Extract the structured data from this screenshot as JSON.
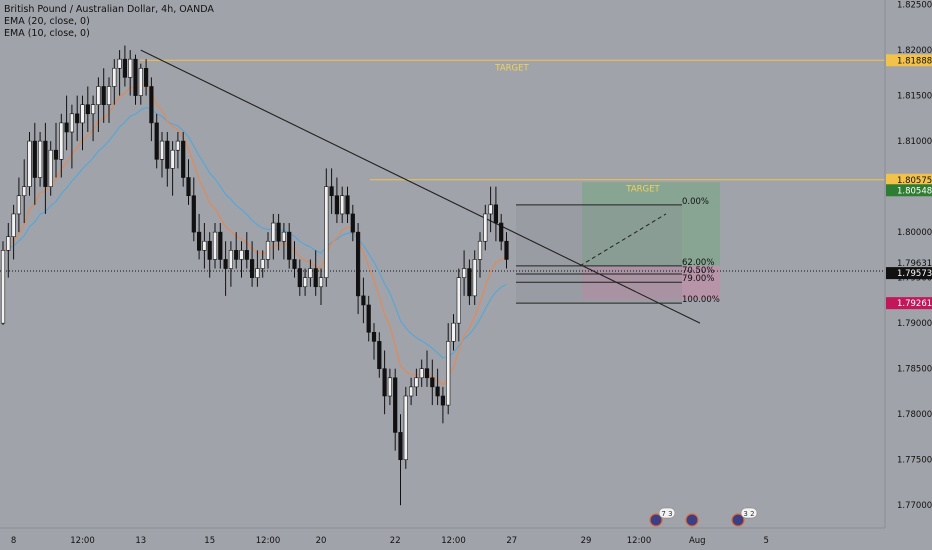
{
  "legend": {
    "title": "British Pound / Australian Dollar, 4h, OANDA",
    "ema1": "EMA (20, close, 0)",
    "ema2": "EMA (10, close, 0)"
  },
  "chart_data": {
    "type": "candlestick",
    "symbol": "GBPAUD",
    "interval": "4h",
    "source": "OANDA",
    "ylim": [
      1.7675,
      1.8255
    ],
    "y_ticks": [
      "1.82500",
      "1.82000",
      "1.81500",
      "1.81000",
      "1.80500",
      "1.80000",
      "1.79500",
      "1.79000",
      "1.78500",
      "1.78000",
      "1.77500",
      "1.77000"
    ],
    "x_ticks": [
      {
        "label": "8",
        "bar": 2
      },
      {
        "label": "12:00",
        "bar": 15
      },
      {
        "label": "13",
        "bar": 26
      },
      {
        "label": "15",
        "bar": 39
      },
      {
        "label": "12:00",
        "bar": 50
      },
      {
        "label": "20",
        "bar": 60
      },
      {
        "label": "22",
        "bar": 74
      },
      {
        "label": "12:00",
        "bar": 85
      },
      {
        "label": "27",
        "bar": 96
      },
      {
        "label": "29",
        "bar": 110
      },
      {
        "label": "12:00",
        "bar": 120
      },
      {
        "label": "Aug",
        "bar": 131
      },
      {
        "label": "5",
        "bar": 144
      }
    ],
    "candles": [
      [
        1.79,
        1.799,
        1.7898,
        1.798
      ],
      [
        1.798,
        1.801,
        1.795,
        1.7995
      ],
      [
        1.7995,
        1.803,
        1.797,
        1.802
      ],
      [
        1.802,
        1.806,
        1.8,
        1.804
      ],
      [
        1.804,
        1.808,
        1.801,
        1.805
      ],
      [
        1.805,
        1.811,
        1.804,
        1.81
      ],
      [
        1.81,
        1.812,
        1.803,
        1.806
      ],
      [
        1.806,
        1.811,
        1.805,
        1.81
      ],
      [
        1.81,
        1.812,
        1.802,
        1.805
      ],
      [
        1.805,
        1.81,
        1.804,
        1.809
      ],
      [
        1.809,
        1.812,
        1.806,
        1.808
      ],
      [
        1.808,
        1.813,
        1.806,
        1.812
      ],
      [
        1.812,
        1.815,
        1.809,
        1.811
      ],
      [
        1.811,
        1.814,
        1.807,
        1.813
      ],
      [
        1.813,
        1.815,
        1.81,
        1.812
      ],
      [
        1.812,
        1.815,
        1.809,
        1.814
      ],
      [
        1.814,
        1.816,
        1.811,
        1.813
      ],
      [
        1.813,
        1.815,
        1.81,
        1.814
      ],
      [
        1.814,
        1.817,
        1.811,
        1.816
      ],
      [
        1.816,
        1.818,
        1.812,
        1.814
      ],
      [
        1.814,
        1.817,
        1.812,
        1.816
      ],
      [
        1.816,
        1.819,
        1.814,
        1.818
      ],
      [
        1.818,
        1.82,
        1.815,
        1.819
      ],
      [
        1.819,
        1.8205,
        1.816,
        1.817
      ],
      [
        1.817,
        1.82,
        1.815,
        1.819
      ],
      [
        1.819,
        1.8195,
        1.814,
        1.815
      ],
      [
        1.815,
        1.8185,
        1.814,
        1.818
      ],
      [
        1.818,
        1.819,
        1.815,
        1.816
      ],
      [
        1.816,
        1.817,
        1.81,
        1.812
      ],
      [
        1.812,
        1.813,
        1.807,
        1.808
      ],
      [
        1.808,
        1.811,
        1.806,
        1.81
      ],
      [
        1.81,
        1.811,
        1.805,
        1.807
      ],
      [
        1.807,
        1.81,
        1.804,
        1.809
      ],
      [
        1.809,
        1.811,
        1.807,
        1.81
      ],
      [
        1.81,
        1.811,
        1.805,
        1.806
      ],
      [
        1.806,
        1.808,
        1.803,
        1.804
      ],
      [
        1.804,
        1.806,
        1.799,
        1.8
      ],
      [
        1.8,
        1.802,
        1.797,
        1.798
      ],
      [
        1.798,
        1.801,
        1.796,
        1.799
      ],
      [
        1.799,
        1.8,
        1.795,
        1.797
      ],
      [
        1.797,
        1.801,
        1.796,
        1.8
      ],
      [
        1.8,
        1.801,
        1.796,
        1.797
      ],
      [
        1.797,
        1.799,
        1.793,
        1.796
      ],
      [
        1.796,
        1.799,
        1.794,
        1.798
      ],
      [
        1.798,
        1.8,
        1.796,
        1.797
      ],
      [
        1.797,
        1.799,
        1.795,
        1.798
      ],
      [
        1.798,
        1.8,
        1.796,
        1.797
      ],
      [
        1.797,
        1.799,
        1.794,
        1.795
      ],
      [
        1.795,
        1.798,
        1.794,
        1.796
      ],
      [
        1.796,
        1.798,
        1.795,
        1.797
      ],
      [
        1.797,
        1.8,
        1.796,
        1.799
      ],
      [
        1.799,
        1.802,
        1.797,
        1.801
      ],
      [
        1.801,
        1.802,
        1.798,
        1.799
      ],
      [
        1.799,
        1.801,
        1.797,
        1.8
      ],
      [
        1.8,
        1.801,
        1.796,
        1.797
      ],
      [
        1.797,
        1.799,
        1.795,
        1.796
      ],
      [
        1.796,
        1.797,
        1.793,
        1.794
      ],
      [
        1.794,
        1.796,
        1.793,
        1.795
      ],
      [
        1.795,
        1.797,
        1.794,
        1.796
      ],
      [
        1.796,
        1.798,
        1.793,
        1.794
      ],
      [
        1.794,
        1.796,
        1.792,
        1.795
      ],
      [
        1.795,
        1.807,
        1.794,
        1.805
      ],
      [
        1.805,
        1.807,
        1.802,
        1.804
      ],
      [
        1.804,
        1.806,
        1.801,
        1.802
      ],
      [
        1.802,
        1.805,
        1.801,
        1.804
      ],
      [
        1.804,
        1.805,
        1.801,
        1.802
      ],
      [
        1.802,
        1.803,
        1.799,
        1.8
      ],
      [
        1.8,
        1.801,
        1.791,
        1.793
      ],
      [
        1.793,
        1.795,
        1.79,
        1.792
      ],
      [
        1.792,
        1.793,
        1.788,
        1.789
      ],
      [
        1.789,
        1.79,
        1.786,
        1.788
      ],
      [
        1.788,
        1.789,
        1.784,
        1.785
      ],
      [
        1.785,
        1.787,
        1.78,
        1.782
      ],
      [
        1.782,
        1.785,
        1.781,
        1.784
      ],
      [
        1.784,
        1.785,
        1.776,
        1.778
      ],
      [
        1.778,
        1.78,
        1.77,
        1.775
      ],
      [
        1.775,
        1.783,
        1.774,
        1.782
      ],
      [
        1.782,
        1.784,
        1.781,
        1.783
      ],
      [
        1.783,
        1.785,
        1.782,
        1.784
      ],
      [
        1.784,
        1.786,
        1.783,
        1.785
      ],
      [
        1.785,
        1.787,
        1.783,
        1.784
      ],
      [
        1.784,
        1.786,
        1.781,
        1.783
      ],
      [
        1.783,
        1.785,
        1.781,
        1.782
      ],
      [
        1.782,
        1.783,
        1.779,
        1.781
      ],
      [
        1.781,
        1.79,
        1.78,
        1.788
      ],
      [
        1.788,
        1.791,
        1.787,
        1.79
      ],
      [
        1.79,
        1.796,
        1.788,
        1.795
      ],
      [
        1.795,
        1.798,
        1.793,
        1.796
      ],
      [
        1.796,
        1.797,
        1.792,
        1.793
      ],
      [
        1.793,
        1.798,
        1.792,
        1.797
      ],
      [
        1.797,
        1.8,
        1.795,
        1.799
      ],
      [
        1.799,
        1.803,
        1.798,
        1.802
      ],
      [
        1.802,
        1.805,
        1.8,
        1.803
      ],
      [
        1.803,
        1.805,
        1.799,
        1.801
      ],
      [
        1.801,
        1.802,
        1.798,
        1.799
      ],
      [
        1.799,
        1.8,
        1.796,
        1.797
      ]
    ],
    "ema_series": [
      {
        "name": "EMA (20, close, 0)",
        "color": "#5aa6d6"
      },
      {
        "name": "EMA (10, close, 0)",
        "color": "#e08a58"
      }
    ],
    "horizontal_levels": [
      {
        "price": 1.81888,
        "label": "TARGET",
        "color": "#f2c24b"
      },
      {
        "price": 1.80575,
        "color": "#f2c24b"
      },
      {
        "price": 1.79573,
        "style": "dotted",
        "color": "#111111"
      }
    ],
    "price_labels": [
      {
        "text": "1.81888",
        "bg": "#f2c24b",
        "fg": "#111111"
      },
      {
        "text": "1.80575",
        "bg": "#f2c24b",
        "fg": "#111111"
      },
      {
        "text": "1.80548",
        "bg": "#2e7d32",
        "fg": "#ffffff"
      },
      {
        "text": "1.79631",
        "bg": "#a0a3aa",
        "fg": "#111111"
      },
      {
        "text": "1.79573",
        "bg": "#111111",
        "fg": "#ffffff"
      },
      {
        "text": "1.79261",
        "bg": "#c2185b",
        "fg": "#ffffff"
      }
    ],
    "fib_levels": [
      {
        "label": "0.00%",
        "price": 1.803
      },
      {
        "label": "62.00%",
        "price": 1.7963
      },
      {
        "label": "70.50%",
        "price": 1.7954
      },
      {
        "label": "79.00%",
        "price": 1.7945
      },
      {
        "label": "100.00%",
        "price": 1.7922
      }
    ],
    "position_tool": {
      "label": "TARGET",
      "entry": 1.7963,
      "target": 1.80548,
      "stop": 1.79261
    }
  }
}
